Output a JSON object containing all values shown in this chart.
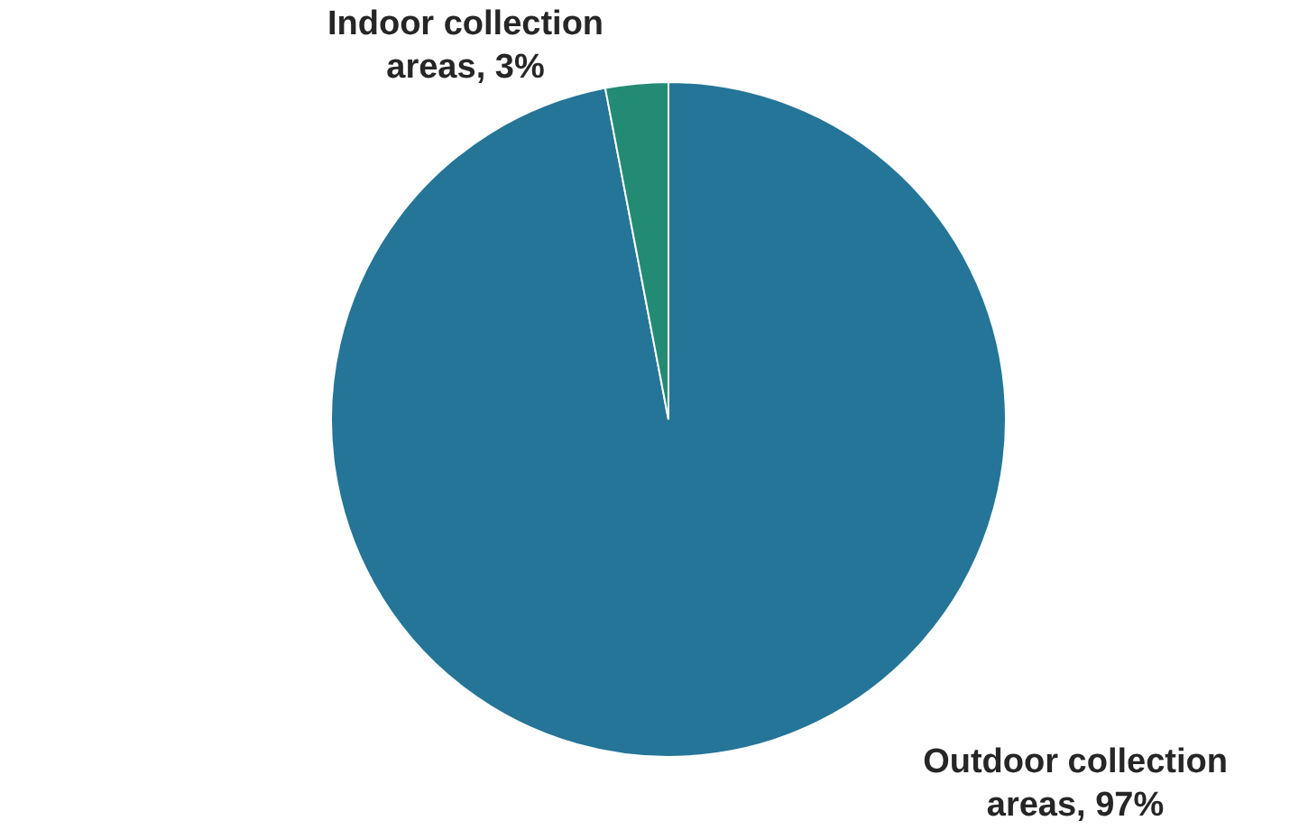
{
  "chart_data": {
    "type": "pie",
    "categories": [
      "Outdoor collection areas",
      "Indoor collection areas"
    ],
    "values": [
      97,
      3
    ],
    "value_labels": [
      "97%",
      "3%"
    ],
    "colors": [
      "#247598",
      "#238a74"
    ],
    "legend": false
  }
}
